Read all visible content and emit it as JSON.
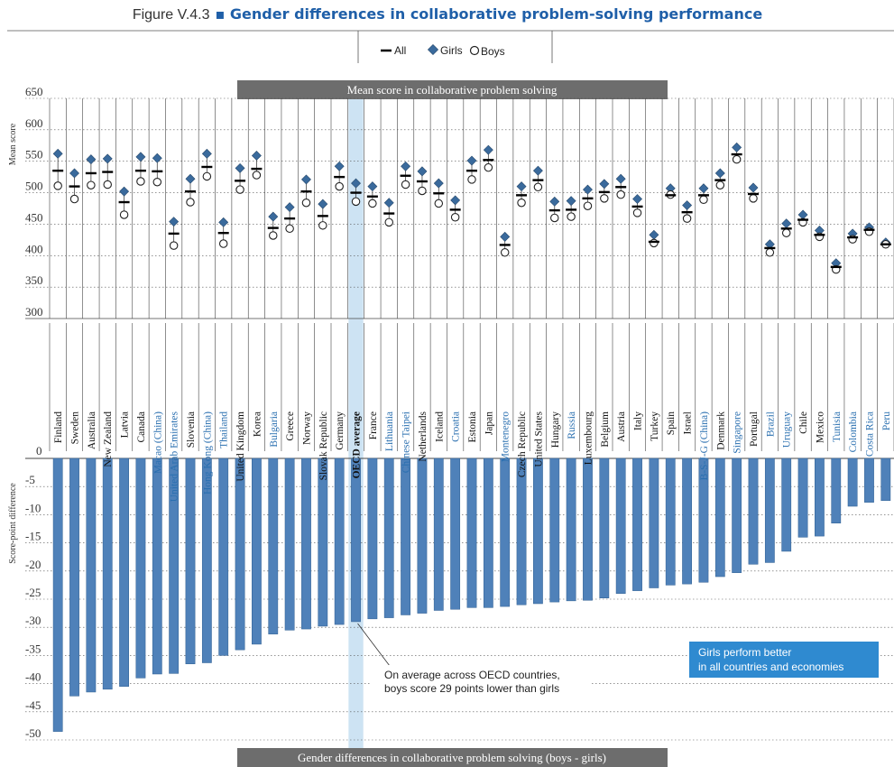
{
  "figure": {
    "number": "Figure V.4.3",
    "title": "Gender differences in collaborative problem-solving performance"
  },
  "legend": {
    "all": "All",
    "girls": "Girls",
    "boys": "Boys"
  },
  "panel_labels": {
    "top": "Mean score in collaborative problem solving",
    "bottom": "Gender differences in collaborative problem solving (boys - girls)"
  },
  "note": {
    "line1": "On average across OECD countries,",
    "line2": "boys score 29 points lower than girls"
  },
  "callout": {
    "line1": "Girls perform better",
    "line2": "in all countries and economies"
  },
  "colors": {
    "accent": "#1f5fa8",
    "bar": "#4f81b9",
    "marker_girls": "#3a6a9c",
    "band": "#6d6d6d",
    "oecd_highlight": "#cde3f3",
    "callout": "#2f8ad0",
    "partner_label": "#2a6fb0"
  },
  "chart_data": [
    {
      "type": "scatter",
      "title": "Mean score in collaborative problem solving",
      "ylabel": "Mean score",
      "ylim": [
        300,
        650
      ],
      "yticks": [
        300,
        350,
        400,
        450,
        500,
        550,
        600,
        650
      ],
      "categories": [
        "Finland",
        "Sweden",
        "Australia",
        "New Zealand",
        "Latvia",
        "Canada",
        "Macao (China)",
        "United Arab Emirates",
        "Slovenia",
        "Hong Kong (China)",
        "Thailand",
        "United Kingdom",
        "Korea",
        "Bulgaria",
        "Greece",
        "Norway",
        "Slovak Republic",
        "Germany",
        "OECD average",
        "France",
        "Lithuania",
        "Chinese Taipei",
        "Netherlands",
        "Iceland",
        "Croatia",
        "Estonia",
        "Japan",
        "Montenegro",
        "Czech Republic",
        "United States",
        "Hungary",
        "Russia",
        "Luxembourg",
        "Belgium",
        "Austria",
        "Italy",
        "Turkey",
        "Spain",
        "Israel",
        "B-S-J-G (China)",
        "Denmark",
        "Singapore",
        "Portugal",
        "Brazil",
        "Uruguay",
        "Chile",
        "Mexico",
        "Tunisia",
        "Colombia",
        "Costa Rica",
        "Peru"
      ],
      "partner": [
        "Macao (China)",
        "United Arab Emirates",
        "Hong Kong (China)",
        "Thailand",
        "Bulgaria",
        "Lithuania",
        "Chinese Taipei",
        "Croatia",
        "Montenegro",
        "Russia",
        "B-S-J-G (China)",
        "Singapore",
        "Brazil",
        "Uruguay",
        "Tunisia",
        "Colombia",
        "Costa Rica",
        "Peru"
      ],
      "series": [
        {
          "name": "All",
          "marker": "dash",
          "values": [
            535,
            510,
            531,
            533,
            485,
            535,
            534,
            435,
            502,
            541,
            436,
            519,
            538,
            444,
            459,
            502,
            463,
            525,
            500,
            494,
            467,
            527,
            518,
            499,
            473,
            535,
            552,
            417,
            496,
            520,
            472,
            473,
            491,
            501,
            509,
            478,
            422,
            496,
            469,
            496,
            520,
            561,
            498,
            412,
            443,
            457,
            433,
            382,
            429,
            441,
            418
          ]
        },
        {
          "name": "Girls",
          "marker": "diamond",
          "values": [
            562,
            531,
            553,
            554,
            502,
            557,
            555,
            454,
            522,
            562,
            453,
            539,
            559,
            462,
            477,
            521,
            482,
            542,
            515,
            510,
            484,
            542,
            534,
            515,
            488,
            551,
            568,
            430,
            510,
            535,
            486,
            487,
            505,
            514,
            522,
            490,
            433,
            507,
            480,
            507,
            531,
            572,
            508,
            418,
            451,
            465,
            440,
            388,
            435,
            445,
            421
          ]
        },
        {
          "name": "Boys",
          "marker": "circle",
          "values": [
            511,
            490,
            512,
            513,
            465,
            518,
            517,
            416,
            485,
            526,
            419,
            505,
            528,
            432,
            443,
            484,
            448,
            510,
            486,
            483,
            453,
            513,
            503,
            483,
            461,
            521,
            540,
            405,
            484,
            509,
            460,
            462,
            479,
            491,
            497,
            468,
            420,
            497,
            459,
            489,
            512,
            553,
            491,
            405,
            436,
            453,
            430,
            378,
            426,
            438,
            418
          ]
        }
      ]
    },
    {
      "type": "bar",
      "title": "Gender differences in collaborative problem solving (boys - girls)",
      "ylabel": "Score-point difference",
      "ylim": [
        -50,
        0
      ],
      "yticks": [
        0,
        -5,
        -10,
        -15,
        -20,
        -25,
        -30,
        -35,
        -40,
        -45,
        -50
      ],
      "categories": [
        "Finland",
        "Sweden",
        "Australia",
        "New Zealand",
        "Latvia",
        "Canada",
        "Macao (China)",
        "United Arab Emirates",
        "Slovenia",
        "Hong Kong (China)",
        "Thailand",
        "United Kingdom",
        "Korea",
        "Bulgaria",
        "Greece",
        "Norway",
        "Slovak Republic",
        "Germany",
        "OECD average",
        "France",
        "Lithuania",
        "Chinese Taipei",
        "Netherlands",
        "Iceland",
        "Croatia",
        "Estonia",
        "Japan",
        "Montenegro",
        "Czech Republic",
        "United States",
        "Hungary",
        "Russia",
        "Luxembourg",
        "Belgium",
        "Austria",
        "Italy",
        "Turkey",
        "Spain",
        "Israel",
        "B-S-J-G (China)",
        "Denmark",
        "Singapore",
        "Portugal",
        "Brazil",
        "Uruguay",
        "Chile",
        "Mexico",
        "Tunisia",
        "Colombia",
        "Costa Rica",
        "Peru"
      ],
      "values": [
        -48.5,
        -42.2,
        -41.5,
        -41.0,
        -40.5,
        -39.0,
        -38.3,
        -38.2,
        -36.5,
        -36.3,
        -35.0,
        -34.0,
        -33.0,
        -31.2,
        -30.5,
        -30.3,
        -29.8,
        -29.5,
        -29.0,
        -28.5,
        -28.3,
        -27.8,
        -27.5,
        -27.0,
        -26.8,
        -26.5,
        -26.5,
        -26.3,
        -26.0,
        -25.8,
        -25.5,
        -25.3,
        -25.2,
        -24.8,
        -24.0,
        -23.5,
        -23.0,
        -22.5,
        -22.3,
        -22.0,
        -21.0,
        -20.3,
        -18.8,
        -18.5,
        -16.5,
        -14.0,
        -13.8,
        -11.5,
        -8.5,
        -7.8,
        -7.5
      ]
    }
  ]
}
